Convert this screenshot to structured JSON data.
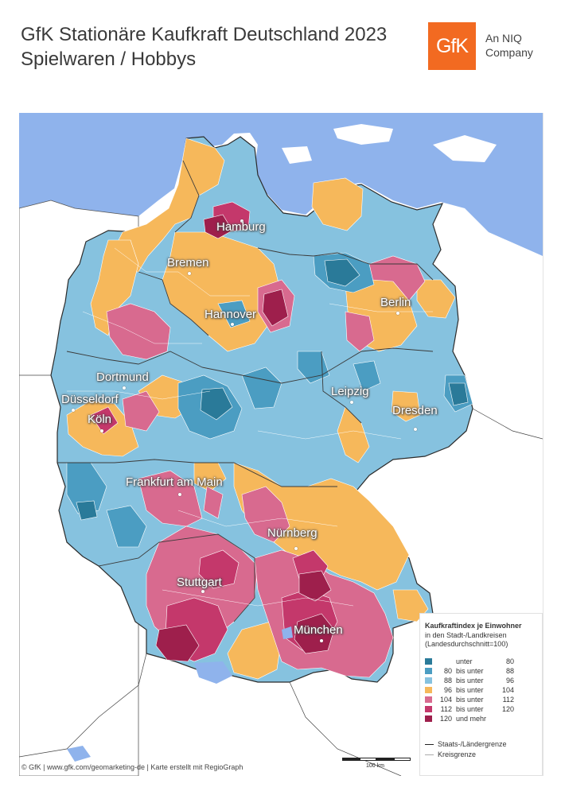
{
  "header": {
    "title_line1": "GfK Stationäre Kaufkraft Deutschland 2023",
    "title_line2": "Spielwaren / Hobbys"
  },
  "logo": {
    "brand": "GfK",
    "tagline_line1": "An NIQ",
    "tagline_line2": "Company",
    "color": "#f26a21"
  },
  "map": {
    "water_color": "#8fb3ec",
    "cities": [
      {
        "name": "Hamburg"
      },
      {
        "name": "Bremen"
      },
      {
        "name": "Berlin"
      },
      {
        "name": "Hannover"
      },
      {
        "name": "Dortmund"
      },
      {
        "name": "Düsseldorf"
      },
      {
        "name": "Köln"
      },
      {
        "name": "Leipzig"
      },
      {
        "name": "Dresden"
      },
      {
        "name": "Frankfurt am Main"
      },
      {
        "name": "Nürnberg"
      },
      {
        "name": "Stuttgart"
      },
      {
        "name": "München"
      }
    ]
  },
  "legend": {
    "heading": "Kaufkraftindex je Einwohner",
    "subtitle_line1": "in den Stadt-/Landkreisen",
    "subtitle_line2": "(Landesdurchschnitt=100)",
    "classes": [
      {
        "from": "",
        "relation": "unter",
        "to": "80",
        "color": "#2a7a99"
      },
      {
        "from": "80",
        "relation": "bis unter",
        "to": "88",
        "color": "#4b9dc2"
      },
      {
        "from": "88",
        "relation": "bis unter",
        "to": "96",
        "color": "#86c2df"
      },
      {
        "from": "96",
        "relation": "bis unter",
        "to": "104",
        "color": "#f6b85b"
      },
      {
        "from": "104",
        "relation": "bis unter",
        "to": "112",
        "color": "#d86a8f"
      },
      {
        "from": "112",
        "relation": "bis unter",
        "to": "120",
        "color": "#c4386b"
      },
      {
        "from": "120",
        "relation": "und mehr",
        "to": "",
        "color": "#9e1f4c"
      }
    ],
    "border_state": "Staats-/Ländergrenze",
    "border_district": "Kreisgrenze"
  },
  "scale_bar": {
    "label": "100 km"
  },
  "footer": {
    "text": "© GfK | www.gfk.com/geomarketing-de | Karte erstellt mit RegioGraph"
  }
}
